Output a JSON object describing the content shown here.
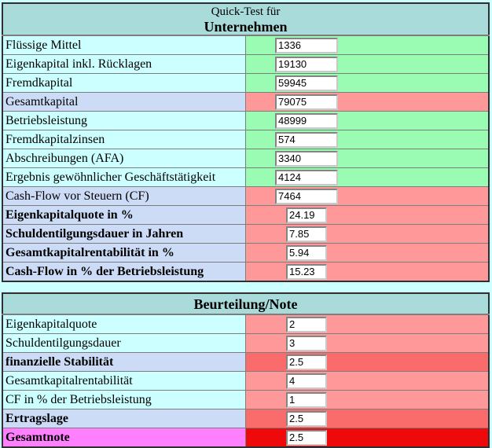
{
  "colors": {
    "page_background": "#CCFFFF",
    "header_teal": "#A9DBDB",
    "label_cyan": "#CCFFFF",
    "label_lavender": "#CCDCF7",
    "label_magenta": "#FF80FF",
    "value_green": "#9AFBB3",
    "value_salmon": "#FF9999",
    "value_dark_red": "#FA6B6B",
    "value_pure_red": "#EE0A0A"
  },
  "quick_test": {
    "title_line1": "Quick-Test für",
    "title_line2": "Unternehmen",
    "rows": [
      {
        "label": "Flüssige Mittel",
        "value": "1336",
        "status": "green"
      },
      {
        "label": "Eigenkapital inkl. Rücklagen",
        "value": "19130",
        "status": "green"
      },
      {
        "label": "Fremdkapital",
        "value": "59945",
        "status": "green"
      },
      {
        "label": "Gesamtkapital",
        "value": "79075",
        "status": "red"
      },
      {
        "label": "Betriebsleistung",
        "value": "48999",
        "status": "green"
      },
      {
        "label": "Fremdkapitalzinsen",
        "value": "574",
        "status": "green"
      },
      {
        "label": "Abschreibungen (AFA)",
        "value": "3340",
        "status": "green"
      },
      {
        "label": "Ergebnis gewöhnlicher Geschäftstätigkeit",
        "value": "4124",
        "status": "green"
      },
      {
        "label": "Cash-Flow vor Steuern (CF)",
        "value": "7464",
        "status": "red"
      },
      {
        "label": "Eigenkapitalquote in %",
        "value": "24.19",
        "status": "red"
      },
      {
        "label": "Schuldentilgungsdauer in Jahren",
        "value": "7.85",
        "status": "red"
      },
      {
        "label": "Gesamtkapitalrentabilität in %",
        "value": "5.94",
        "status": "red"
      },
      {
        "label": "Cash-Flow in % der Betriebsleistung",
        "value": "15.23",
        "status": "red"
      }
    ]
  },
  "beurteilung": {
    "title": "Beurteilung/Note",
    "rows": [
      {
        "label": "Eigenkapitalquote",
        "value": "2",
        "status": "salmon"
      },
      {
        "label": "Schuldentilgungsdauer",
        "value": "3",
        "status": "salmon"
      },
      {
        "label": "finanzielle Stabilität",
        "value": "2.5",
        "status": "dark-red"
      },
      {
        "label": "Gesamtkapitalrentabilität",
        "value": "4",
        "status": "salmon"
      },
      {
        "label": "CF in % der Betriebsleistung",
        "value": "1",
        "status": "salmon"
      },
      {
        "label": "Ertragslage",
        "value": "2.5",
        "status": "dark-red"
      },
      {
        "label": "Gesamtnote",
        "value": "2.5",
        "status": "pure-red"
      }
    ]
  }
}
